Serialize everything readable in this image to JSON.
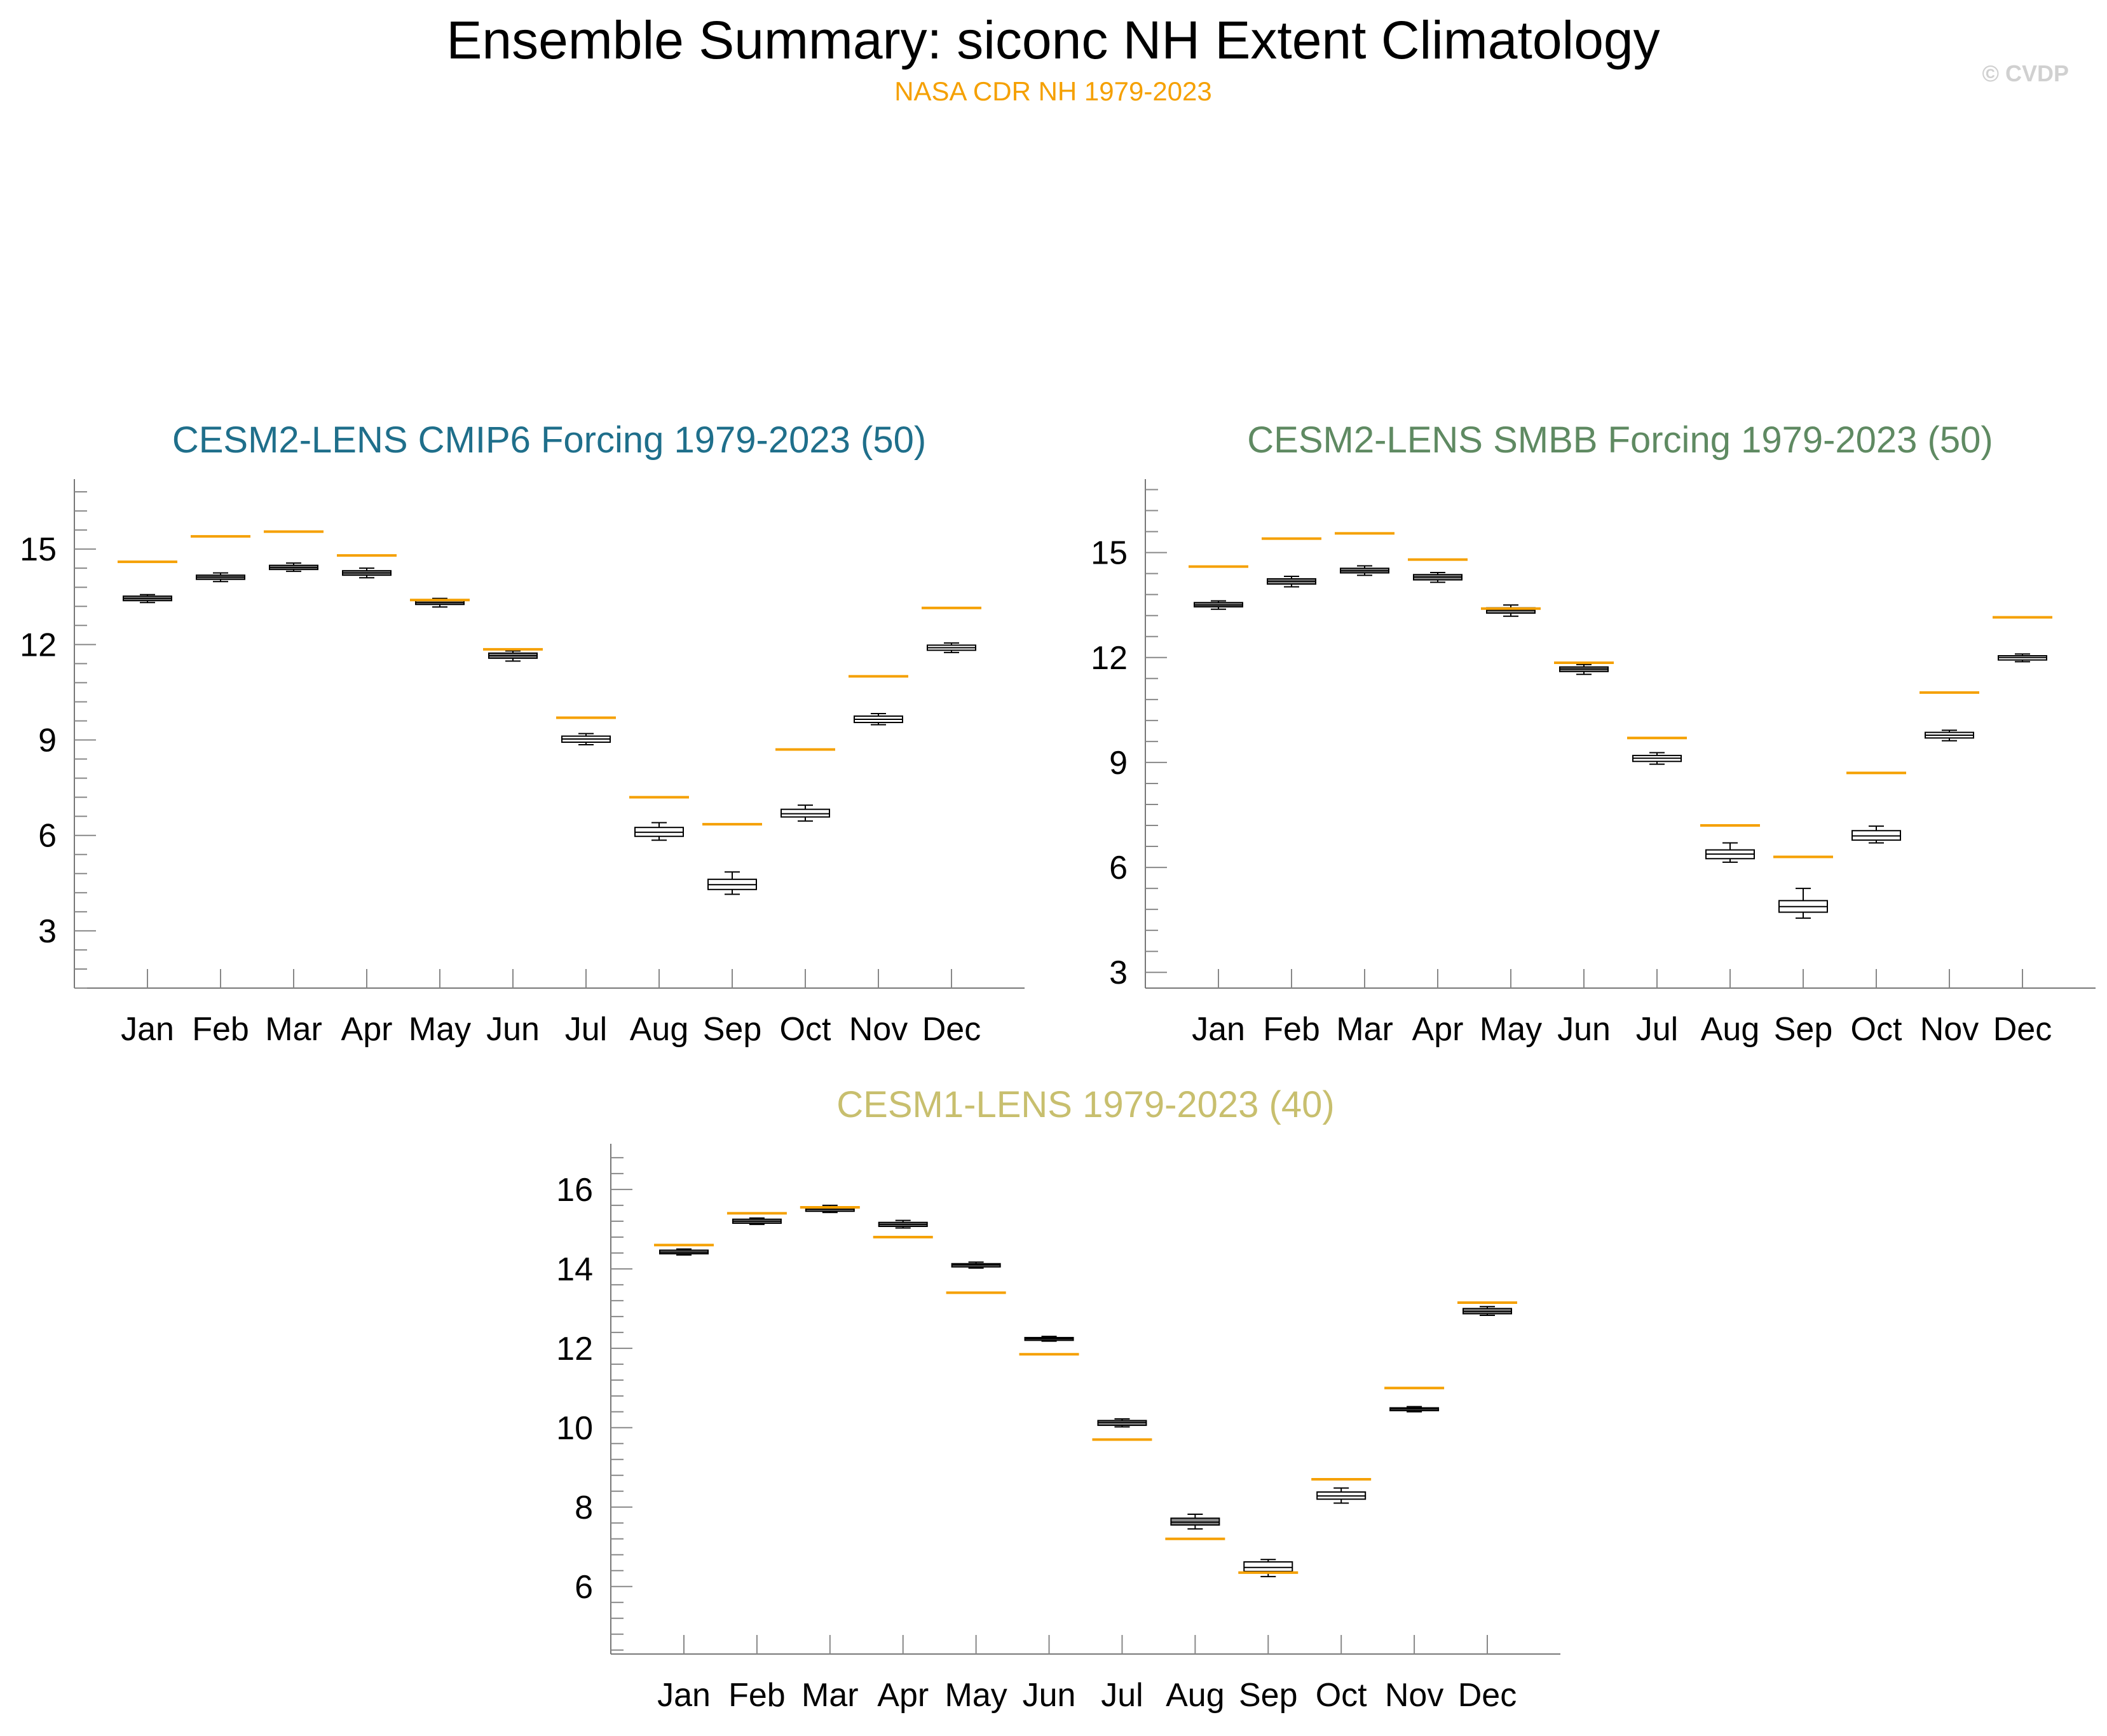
{
  "page": {
    "title": "Ensemble Summary: siconc NH Extent Climatology",
    "subtitle": "NASA CDR NH 1979-2023",
    "watermark": "© CVDP",
    "colors": {
      "title": "#000000",
      "subtitle": "#f5a000",
      "watermark": "#d0d0d0",
      "observation_line": "#f5a000",
      "box_fill_gray": "#8c8c8c",
      "box_fill_white": "#ffffff"
    }
  },
  "chart_data": [
    {
      "type": "box",
      "title": "CESM2-LENS CMIP6 Forcing 1979-2023 (50)",
      "title_color": "#1f6f8b",
      "categories": [
        "Jan",
        "Feb",
        "Mar",
        "Apr",
        "May",
        "Jun",
        "Jul",
        "Aug",
        "Sep",
        "Oct",
        "Nov",
        "Dec"
      ],
      "yticks": [
        3,
        6,
        9,
        12,
        15
      ],
      "ylim": [
        1.2,
        17.2
      ],
      "observation_name": "NASA CDR NH 1979-2023",
      "observation": [
        14.6,
        15.4,
        15.55,
        14.8,
        13.4,
        11.85,
        9.7,
        7.2,
        6.35,
        8.7,
        11.0,
        13.15
      ],
      "boxes": [
        {
          "min": 13.32,
          "q1": 13.38,
          "median": 13.45,
          "q3": 13.52,
          "max": 13.57,
          "fill": "gray"
        },
        {
          "min": 13.98,
          "q1": 14.05,
          "median": 14.12,
          "q3": 14.18,
          "max": 14.25,
          "fill": "gray"
        },
        {
          "min": 14.3,
          "q1": 14.36,
          "median": 14.42,
          "q3": 14.49,
          "max": 14.56,
          "fill": "gray"
        },
        {
          "min": 14.1,
          "q1": 14.18,
          "median": 14.25,
          "q3": 14.32,
          "max": 14.4,
          "fill": "gray"
        },
        {
          "min": 13.18,
          "q1": 13.26,
          "median": 13.32,
          "q3": 13.38,
          "max": 13.45,
          "fill": "gray"
        },
        {
          "min": 11.48,
          "q1": 11.57,
          "median": 11.65,
          "q3": 11.73,
          "max": 11.8,
          "fill": "gray"
        },
        {
          "min": 8.85,
          "q1": 8.93,
          "median": 9.03,
          "q3": 9.12,
          "max": 9.2,
          "fill": "white"
        },
        {
          "min": 5.85,
          "q1": 5.97,
          "median": 6.1,
          "q3": 6.25,
          "max": 6.4,
          "fill": "white"
        },
        {
          "min": 4.15,
          "q1": 4.3,
          "median": 4.45,
          "q3": 4.62,
          "max": 4.85,
          "fill": "white"
        },
        {
          "min": 6.45,
          "q1": 6.58,
          "median": 6.68,
          "q3": 6.82,
          "max": 6.95,
          "fill": "white"
        },
        {
          "min": 9.48,
          "q1": 9.55,
          "median": 9.65,
          "q3": 9.75,
          "max": 9.83,
          "fill": "white"
        },
        {
          "min": 11.75,
          "q1": 11.82,
          "median": 11.9,
          "q3": 11.98,
          "max": 12.05,
          "fill": "white"
        }
      ]
    },
    {
      "type": "box",
      "title": "CESM2-LENS SMBB Forcing 1979-2023 (50)",
      "title_color": "#5f8a62",
      "categories": [
        "Jan",
        "Feb",
        "Mar",
        "Apr",
        "May",
        "Jun",
        "Jul",
        "Aug",
        "Sep",
        "Oct",
        "Nov",
        "Dec"
      ],
      "yticks": [
        3,
        6,
        9,
        12,
        15
      ],
      "ylim": [
        2.55,
        17.1
      ],
      "observation_name": "NASA CDR NH 1979-2023",
      "observation": [
        14.6,
        15.4,
        15.55,
        14.8,
        13.4,
        11.85,
        9.7,
        7.2,
        6.3,
        8.7,
        11.0,
        13.15
      ],
      "boxes": [
        {
          "min": 13.38,
          "q1": 13.45,
          "median": 13.5,
          "q3": 13.57,
          "max": 13.62,
          "fill": "gray"
        },
        {
          "min": 14.02,
          "q1": 14.1,
          "median": 14.18,
          "q3": 14.25,
          "max": 14.32,
          "fill": "gray"
        },
        {
          "min": 14.35,
          "q1": 14.42,
          "median": 14.48,
          "q3": 14.55,
          "max": 14.62,
          "fill": "gray"
        },
        {
          "min": 14.15,
          "q1": 14.22,
          "median": 14.3,
          "q3": 14.37,
          "max": 14.43,
          "fill": "gray"
        },
        {
          "min": 13.18,
          "q1": 13.27,
          "median": 13.35,
          "q3": 13.42,
          "max": 13.5,
          "fill": "gray"
        },
        {
          "min": 11.52,
          "q1": 11.6,
          "median": 11.67,
          "q3": 11.73,
          "max": 11.8,
          "fill": "gray"
        },
        {
          "min": 8.95,
          "q1": 9.03,
          "median": 9.12,
          "q3": 9.2,
          "max": 9.28,
          "fill": "white"
        },
        {
          "min": 6.15,
          "q1": 6.25,
          "median": 6.38,
          "q3": 6.5,
          "max": 6.7,
          "fill": "white"
        },
        {
          "min": 4.55,
          "q1": 4.72,
          "median": 4.88,
          "q3": 5.05,
          "max": 5.4,
          "fill": "white"
        },
        {
          "min": 6.7,
          "q1": 6.78,
          "median": 6.9,
          "q3": 7.05,
          "max": 7.18,
          "fill": "white"
        },
        {
          "min": 9.62,
          "q1": 9.7,
          "median": 9.78,
          "q3": 9.86,
          "max": 9.92,
          "fill": "white"
        },
        {
          "min": 11.88,
          "q1": 11.93,
          "median": 12.0,
          "q3": 12.05,
          "max": 12.1,
          "fill": "white"
        }
      ]
    },
    {
      "type": "box",
      "title": "CESM1-LENS 1979-2023 (40)",
      "title_color": "#c8bf6e",
      "categories": [
        "Jan",
        "Feb",
        "Mar",
        "Apr",
        "May",
        "Jun",
        "Jul",
        "Aug",
        "Sep",
        "Oct",
        "Nov",
        "Dec"
      ],
      "yticks": [
        6,
        8,
        10,
        12,
        14,
        16
      ],
      "ylim": [
        4.3,
        17.15
      ],
      "observation_name": "NASA CDR NH 1979-2023",
      "observation": [
        14.6,
        15.4,
        15.55,
        14.8,
        13.4,
        11.85,
        9.7,
        7.2,
        6.35,
        8.7,
        11.0,
        13.15
      ],
      "boxes": [
        {
          "min": 14.35,
          "q1": 14.38,
          "median": 14.42,
          "q3": 14.47,
          "max": 14.5,
          "fill": "gray"
        },
        {
          "min": 15.12,
          "q1": 15.15,
          "median": 15.2,
          "q3": 15.25,
          "max": 15.28,
          "fill": "gray"
        },
        {
          "min": 15.42,
          "q1": 15.45,
          "median": 15.5,
          "q3": 15.55,
          "max": 15.6,
          "fill": "gray"
        },
        {
          "min": 15.03,
          "q1": 15.07,
          "median": 15.12,
          "q3": 15.17,
          "max": 15.22,
          "fill": "gray"
        },
        {
          "min": 14.02,
          "q1": 14.05,
          "median": 14.1,
          "q3": 14.13,
          "max": 14.17,
          "fill": "gray"
        },
        {
          "min": 12.18,
          "q1": 12.2,
          "median": 12.24,
          "q3": 12.27,
          "max": 12.3,
          "fill": "gray"
        },
        {
          "min": 10.02,
          "q1": 10.06,
          "median": 10.13,
          "q3": 10.18,
          "max": 10.22,
          "fill": "gray"
        },
        {
          "min": 7.45,
          "q1": 7.55,
          "median": 7.62,
          "q3": 7.72,
          "max": 7.82,
          "fill": "gray"
        },
        {
          "min": 6.25,
          "q1": 6.38,
          "median": 6.48,
          "q3": 6.62,
          "max": 6.68,
          "fill": "white"
        },
        {
          "min": 8.1,
          "q1": 8.2,
          "median": 8.28,
          "q3": 8.38,
          "max": 8.48,
          "fill": "white"
        },
        {
          "min": 10.4,
          "q1": 10.43,
          "median": 10.47,
          "q3": 10.5,
          "max": 10.53,
          "fill": "gray"
        },
        {
          "min": 12.83,
          "q1": 12.87,
          "median": 12.93,
          "q3": 13.0,
          "max": 13.05,
          "fill": "gray"
        }
      ]
    }
  ]
}
